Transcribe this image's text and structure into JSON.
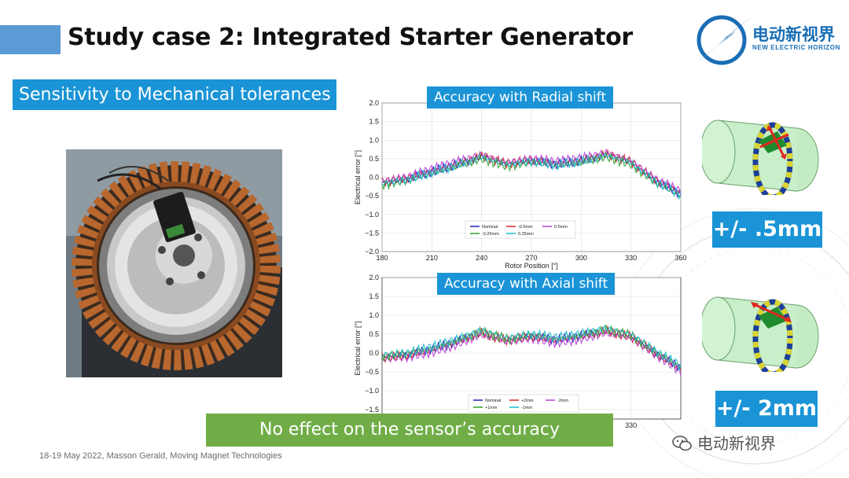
{
  "slide": {
    "title": "Study case 2: Integrated Starter Generator",
    "sensitivity_label": "Sensitivity to Mechanical tolerances",
    "conclusion": "No effect on the sensor’s accuracy",
    "footer": "18-19 May 2022, Masson Gerald, Moving Magnet Technologies",
    "radial_tolerance": "+/- .5mm",
    "axial_tolerance": "+/- 2mm",
    "accent_color": "#1a94d6",
    "conclusion_color": "#70ad47"
  },
  "logo": {
    "text_cn": "电动新视界",
    "text_en": "NEW ELECTRIC HORIZON",
    "icon": "lightning-bolt-icon"
  },
  "watermark": {
    "text": "电动新视界",
    "icon": "wechat-icon"
  },
  "chart_data": [
    {
      "type": "line",
      "title": "Accuracy with Radial shift",
      "xlabel": "Rotor Position [°]",
      "ylabel": "Electrical error [°]",
      "xlim": [
        180,
        360
      ],
      "ylim": [
        -2.0,
        2.0
      ],
      "xticks": [
        "180",
        "210",
        "240",
        "270",
        "300",
        "330",
        "360"
      ],
      "yticks": [
        "2.0",
        "1.5",
        "1.0",
        "0.5",
        "0.0",
        "−0.5",
        "−1.0",
        "−1.5",
        "−2.0"
      ],
      "grid": true,
      "legend_position": "bottom-center",
      "x": [
        180,
        195,
        210,
        225,
        240,
        255,
        270,
        285,
        300,
        315,
        330,
        345,
        360
      ],
      "series": [
        {
          "name": "Nominal",
          "color": "#1f1fb4",
          "values": [
            -0.15,
            -0.05,
            0.15,
            0.35,
            0.55,
            0.35,
            0.45,
            0.35,
            0.45,
            0.6,
            0.4,
            -0.1,
            -0.45
          ]
        },
        {
          "name": "-0.5mm",
          "color": "#d62728",
          "values": [
            -0.12,
            -0.03,
            0.17,
            0.37,
            0.57,
            0.37,
            0.47,
            0.37,
            0.47,
            0.62,
            0.42,
            -0.08,
            -0.43
          ]
        },
        {
          "name": "0.5mm",
          "color": "#b83fd6",
          "values": [
            -0.08,
            0.02,
            0.22,
            0.42,
            0.62,
            0.42,
            0.52,
            0.42,
            0.52,
            0.67,
            0.47,
            -0.03,
            -0.38
          ]
        },
        {
          "name": "-0.25mm",
          "color": "#2ca02c",
          "values": [
            -0.2,
            -0.1,
            0.1,
            0.3,
            0.5,
            0.3,
            0.4,
            0.3,
            0.4,
            0.55,
            0.35,
            -0.15,
            -0.5
          ]
        },
        {
          "name": "0.25mm",
          "color": "#17becf",
          "values": [
            -0.17,
            -0.07,
            0.13,
            0.33,
            0.53,
            0.33,
            0.43,
            0.33,
            0.43,
            0.58,
            0.38,
            -0.12,
            -0.47
          ]
        }
      ]
    },
    {
      "type": "line",
      "title": "Accuracy with Axial shift",
      "xlabel": "",
      "ylabel": "Electrical error [°]",
      "xlim": [
        180,
        360
      ],
      "ylim": [
        -1.75,
        2.0
      ],
      "xticks": [
        "330"
      ],
      "yticks": [
        "2.0",
        "1.5",
        "1.0",
        "0.5",
        "0.0",
        "−0.5",
        "−1.0",
        "−1.5"
      ],
      "grid": true,
      "legend_position": "bottom-center",
      "x": [
        180,
        195,
        210,
        225,
        240,
        255,
        270,
        285,
        300,
        315,
        330,
        345,
        360
      ],
      "series": [
        {
          "name": "Nominal",
          "color": "#1f1fb4",
          "values": [
            -0.1,
            -0.05,
            0.1,
            0.3,
            0.55,
            0.35,
            0.45,
            0.35,
            0.45,
            0.6,
            0.45,
            0.0,
            -0.4
          ]
        },
        {
          "name": "+2mm",
          "color": "#d62728",
          "values": [
            -0.12,
            -0.07,
            0.08,
            0.28,
            0.53,
            0.33,
            0.43,
            0.33,
            0.43,
            0.58,
            0.43,
            -0.02,
            -0.42
          ]
        },
        {
          "name": "-2mm",
          "color": "#b83fd6",
          "values": [
            -0.18,
            -0.13,
            0.02,
            0.22,
            0.47,
            0.27,
            0.37,
            0.27,
            0.37,
            0.52,
            0.37,
            -0.08,
            -0.48
          ]
        },
        {
          "name": "+1mm",
          "color": "#2ca02c",
          "values": [
            -0.08,
            -0.03,
            0.12,
            0.32,
            0.57,
            0.37,
            0.47,
            0.37,
            0.47,
            0.62,
            0.47,
            0.02,
            -0.38
          ]
        },
        {
          "name": "-1mm",
          "color": "#17becf",
          "values": [
            -0.04,
            0.01,
            0.16,
            0.36,
            0.61,
            0.41,
            0.51,
            0.41,
            0.51,
            0.66,
            0.51,
            0.06,
            -0.34
          ]
        }
      ]
    }
  ]
}
